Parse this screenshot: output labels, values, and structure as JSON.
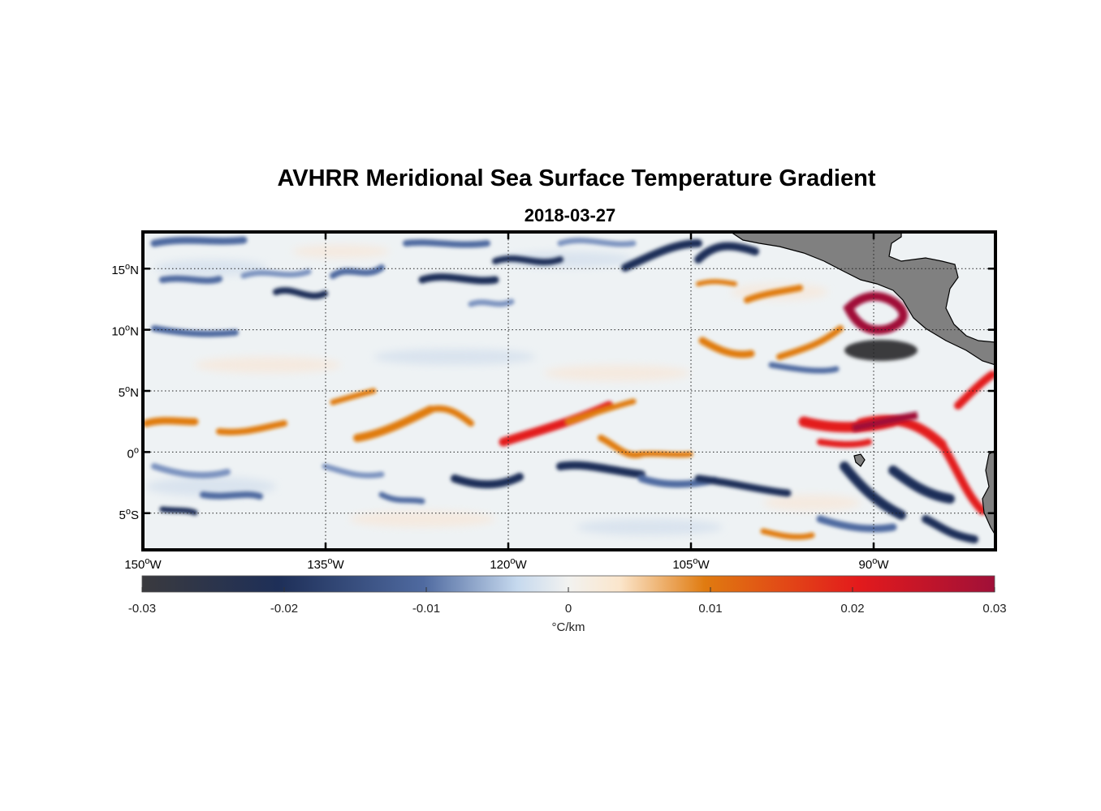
{
  "title": "AVHRR Meridional Sea Surface Temperature Gradient",
  "subtitle": "2018-03-27",
  "map": {
    "lon_range": [
      -150,
      -80
    ],
    "lat_range": [
      -8,
      18
    ],
    "land_color": "#808080",
    "grid": "dotted",
    "lon_ticks": [
      {
        "value": -150,
        "deg": "150",
        "hemi": "W"
      },
      {
        "value": -135,
        "deg": "135",
        "hemi": "W"
      },
      {
        "value": -120,
        "deg": "120",
        "hemi": "W"
      },
      {
        "value": -105,
        "deg": "105",
        "hemi": "W"
      },
      {
        "value": -90,
        "deg": "90",
        "hemi": "W"
      }
    ],
    "lat_ticks": [
      {
        "value": 15,
        "deg": "15",
        "hemi": "N"
      },
      {
        "value": 10,
        "deg": "10",
        "hemi": "N"
      },
      {
        "value": 5,
        "deg": "5",
        "hemi": "N"
      },
      {
        "value": 0,
        "deg": "0",
        "hemi": ""
      },
      {
        "value": -5,
        "deg": "5",
        "hemi": "S"
      }
    ]
  },
  "colorbar": {
    "label": "°C/km",
    "range": [
      -0.03,
      0.03
    ],
    "ticks": [
      {
        "value": -0.03,
        "label": "-0.03"
      },
      {
        "value": -0.02,
        "label": "-0.02"
      },
      {
        "value": -0.01,
        "label": "-0.01"
      },
      {
        "value": 0,
        "label": "0"
      },
      {
        "value": 0.01,
        "label": "0.01"
      },
      {
        "value": 0.02,
        "label": "0.02"
      },
      {
        "value": 0.03,
        "label": "0.03"
      }
    ],
    "colors": [
      "#3a3a3e",
      "#1e2f58",
      "#4f6aa0",
      "#c6d9ee",
      "#f2f2f0",
      "#fbe6cc",
      "#e07b10",
      "#e31a1c",
      "#a01038"
    ]
  },
  "features": [
    {
      "kind": "pos",
      "lat": 2,
      "lon": -147
    },
    {
      "kind": "neg",
      "lat": 15,
      "lon": -140
    }
  ]
}
